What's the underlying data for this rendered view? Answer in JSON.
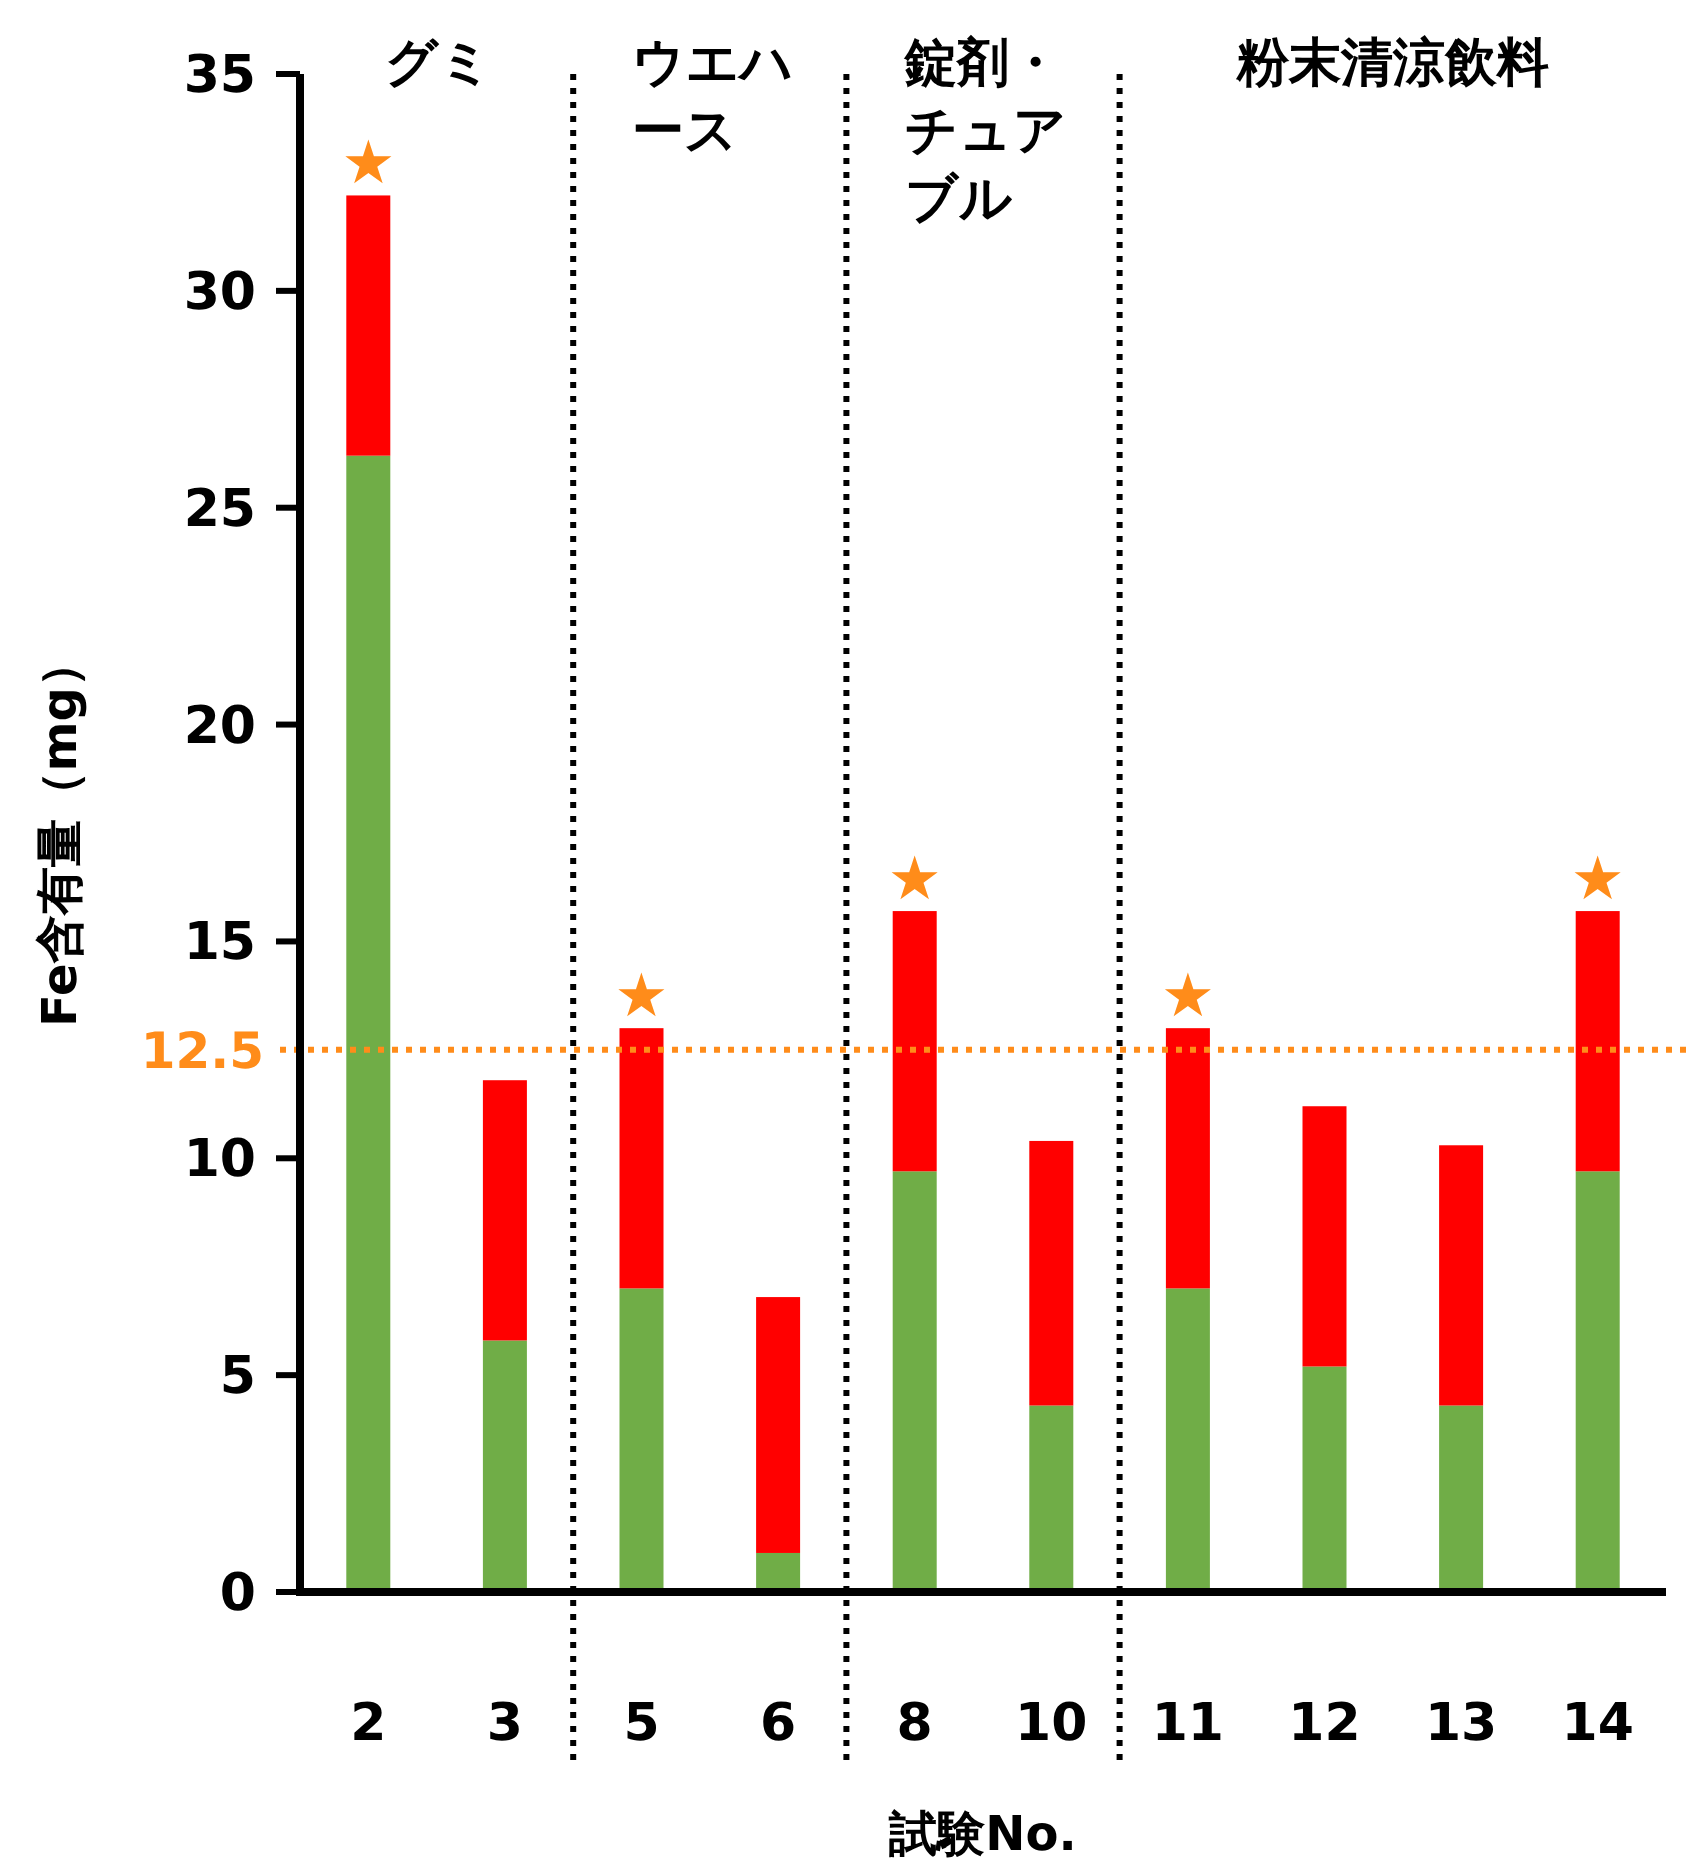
{
  "chart_data": {
    "type": "bar",
    "stacked": true,
    "xlabel": "試験No.",
    "ylabel": "Fe含有量（mg）",
    "categories": [
      "2",
      "3",
      "5",
      "6",
      "8",
      "10",
      "11",
      "12",
      "13",
      "14"
    ],
    "series": [
      {
        "color": "#70ad47",
        "values": [
          26.2,
          5.8,
          7.0,
          0.9,
          9.7,
          4.3,
          7.0,
          5.2,
          4.3,
          9.7
        ]
      },
      {
        "color": "#ff0000",
        "values": [
          6.0,
          6.0,
          6.0,
          5.9,
          6.0,
          6.1,
          6.0,
          6.0,
          6.0,
          6.0
        ]
      }
    ],
    "ylim": [
      0,
      35
    ],
    "yticks": [
      0,
      5,
      10,
      15,
      20,
      25,
      30,
      35
    ],
    "grid": false,
    "ref_lines": [
      {
        "axis": "y",
        "value": 12.5,
        "label": "12.5",
        "color": "#ff8c1a",
        "line_style": "dotted"
      }
    ],
    "annotations": [
      "グミ",
      "ウエハース",
      "錠剤・チュアブル",
      "粉末清涼飲料",
      {
        "text": "★",
        "x": "2",
        "y": 32.2
      },
      {
        "text": "★",
        "x": "5",
        "y": 13.0
      },
      {
        "text": "★",
        "x": "8",
        "y": 15.7
      },
      {
        "text": "★",
        "x": "11",
        "y": 13.0
      },
      {
        "text": "★",
        "x": "14",
        "y": 15.7
      }
    ]
  }
}
